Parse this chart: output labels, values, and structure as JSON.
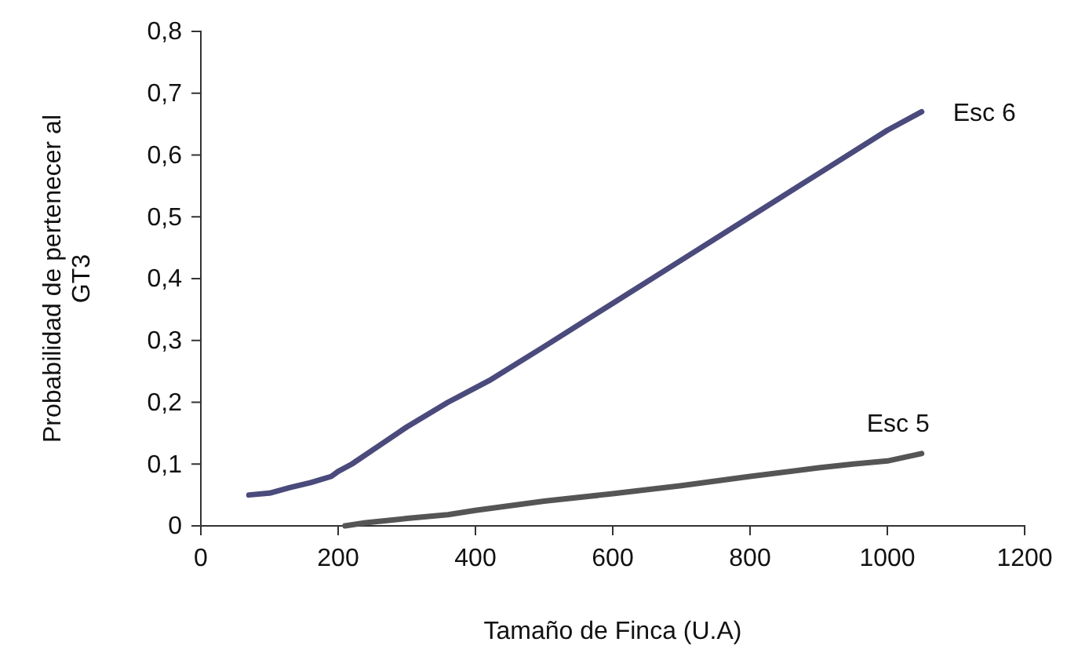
{
  "chart_data": {
    "type": "line",
    "xlabel": "Tamaño de Finca (U.A)",
    "ylabel": "Probabilidad de pertenecer al GT3",
    "xlim": [
      0,
      1200
    ],
    "xticks": [
      0,
      200,
      400,
      600,
      800,
      1000,
      1200
    ],
    "ylim": [
      0,
      0.8
    ],
    "yticks": [
      0,
      {
        "value": 0.1,
        "label": "0,1"
      },
      {
        "value": 0.2,
        "label": "0,2"
      },
      {
        "value": 0.3,
        "label": "0,3"
      },
      {
        "value": 0.4,
        "label": "0,4"
      },
      {
        "value": 0.5,
        "label": "0,5"
      },
      {
        "value": 0.6,
        "label": "0,6"
      },
      {
        "value": 0.7,
        "label": "0,7"
      },
      {
        "value": 0.8,
        "label": "0,8"
      }
    ],
    "grid": false,
    "legend": false,
    "marker": "none",
    "line_style": "solid",
    "series": [
      {
        "name": "Esc 6",
        "color": "#4b4a7c",
        "x": [
          70,
          100,
          130,
          160,
          190,
          200,
          220,
          260,
          300,
          360,
          420,
          500,
          600,
          700,
          800,
          900,
          1000,
          1050
        ],
        "values": [
          0.05,
          0.053,
          0.062,
          0.07,
          0.08,
          0.088,
          0.1,
          0.13,
          0.16,
          0.2,
          0.235,
          0.29,
          0.36,
          0.43,
          0.5,
          0.57,
          0.64,
          0.67
        ]
      },
      {
        "name": "Esc 5",
        "color": "#555555",
        "x": [
          210,
          240,
          300,
          360,
          400,
          500,
          600,
          700,
          800,
          900,
          950,
          1000,
          1050
        ],
        "values": [
          0,
          0.005,
          0.012,
          0.018,
          0.025,
          0.04,
          0.052,
          0.065,
          0.08,
          0.094,
          0.1,
          0.105,
          0.117
        ]
      }
    ]
  }
}
